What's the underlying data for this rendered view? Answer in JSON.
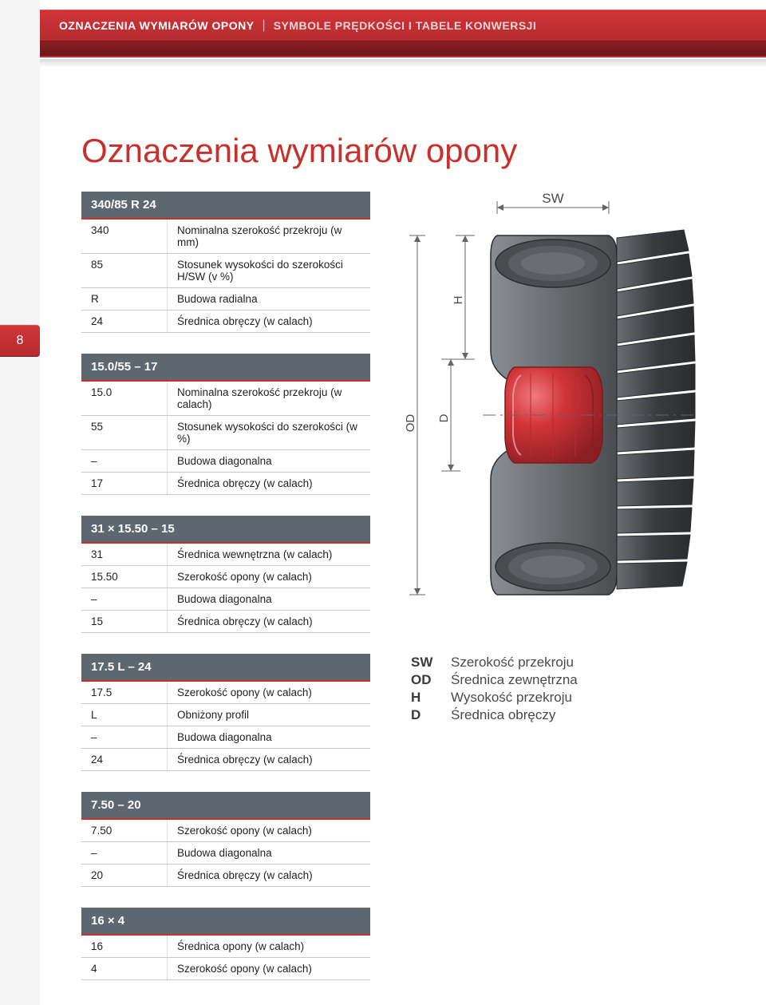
{
  "header": {
    "title1": "OZNACZENIA WYMIARÓW OPONY",
    "title2": "SYMBOLE PRĘDKOŚCI I TABELE KONWERSJI"
  },
  "page_number": "8",
  "main_title": "Oznaczenia wymiarów opony",
  "tables": [
    {
      "header": "340/85 R 24",
      "rows": [
        [
          "340",
          "Nominalna szerokość przekroju (w mm)"
        ],
        [
          "85",
          "Stosunek wysokości do szerokości H/SW (v %)"
        ],
        [
          "R",
          "Budowa radialna"
        ],
        [
          "24",
          "Średnica obręczy (w calach)"
        ]
      ]
    },
    {
      "header": "15.0/55 – 17",
      "rows": [
        [
          "15.0",
          "Nominalna szerokość przekroju (w calach)"
        ],
        [
          "55",
          "Stosunek wysokości do szerokości (w %)"
        ],
        [
          "–",
          "Budowa diagonalna"
        ],
        [
          "17",
          "Średnica obręczy (w calach)"
        ]
      ]
    },
    {
      "header": "31 × 15.50 – 15",
      "rows": [
        [
          "31",
          "Średnica wewnętrzna (w calach)"
        ],
        [
          "15.50",
          "Szerokość opony (w calach)"
        ],
        [
          "–",
          "Budowa diagonalna"
        ],
        [
          "15",
          "Średnica obręczy (w calach)"
        ]
      ]
    },
    {
      "header": "17.5 L – 24",
      "rows": [
        [
          "17.5",
          "Szerokość opony (w calach)"
        ],
        [
          "L",
          "Obniżony profil"
        ],
        [
          "–",
          "Budowa diagonalna"
        ],
        [
          "24",
          "Średnica obręczy (w calach)"
        ]
      ]
    },
    {
      "header": "7.50 – 20",
      "rows": [
        [
          "7.50",
          "Szerokość opony (w calach)"
        ],
        [
          "–",
          "Budowa diagonalna"
        ],
        [
          "20",
          "Średnica obręczy (w calach)"
        ]
      ]
    },
    {
      "header": "16 × 4",
      "rows": [
        [
          "16",
          "Średnica opony (w calach)"
        ],
        [
          "4",
          "Szerokość opony (w calach)"
        ]
      ]
    }
  ],
  "diagram": {
    "labels": {
      "SW": "SW",
      "H": "H",
      "OD": "OD",
      "D": "D"
    },
    "colors": {
      "tire_dark": "#3a3d40",
      "tire_mid": "#5a5e62",
      "tire_light": "#7a7f84",
      "rim_red": "#d13438",
      "rim_red_dark": "#9a2326",
      "rim_highlight": "#e85a5e",
      "dim_line": "#606468",
      "label_text": "#4a4a4a"
    }
  },
  "legend": [
    [
      "SW",
      "Szerokość przekroju"
    ],
    [
      "OD",
      "Średnica zewnętrzna"
    ],
    [
      "H",
      "Wysokość przekroju"
    ],
    [
      "D",
      "Średnica obręczy"
    ]
  ]
}
